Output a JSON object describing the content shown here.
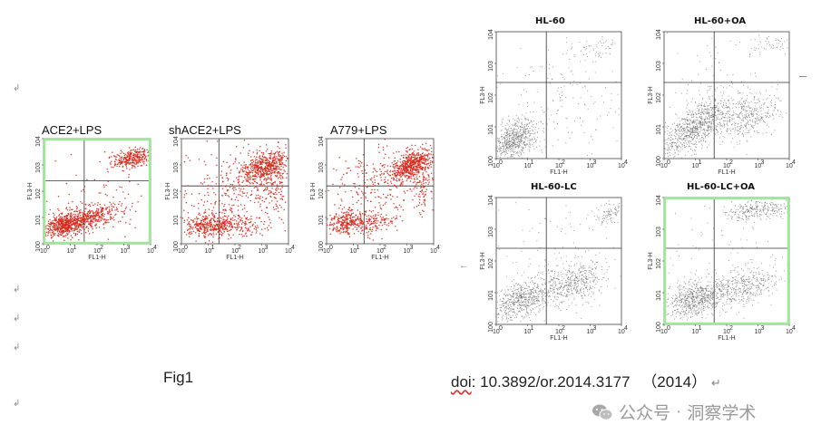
{
  "left_panels": [
    {
      "title": "ACE2+LPS",
      "dot_color": "#d6291c",
      "highlight": true,
      "pattern": "ace2"
    },
    {
      "title": "shACE2+LPS",
      "dot_color": "#d6291c",
      "highlight": false,
      "pattern": "sh"
    },
    {
      "title": "A779+LPS",
      "dot_color": "#d6291c",
      "highlight": false,
      "pattern": "a779"
    }
  ],
  "right_panels": [
    {
      "title": "HL-60",
      "dot_color": "#6e6e6e",
      "highlight": false,
      "pattern": "hl60"
    },
    {
      "title": "HL-60+OA",
      "dot_color": "#6e6e6e",
      "highlight": false,
      "pattern": "hl60oa"
    },
    {
      "title": "HL-60-LC",
      "dot_color": "#6e6e6e",
      "highlight": false,
      "pattern": "hl60lc"
    },
    {
      "title": "HL-60-LC+OA",
      "dot_color": "#6e6e6e",
      "highlight": true,
      "pattern": "hl60lcoa"
    }
  ],
  "axes": {
    "x_label": "FL1-H",
    "y_label": "FL3-H",
    "ticks": [
      "10",
      "10",
      "10",
      "10",
      "10"
    ],
    "exponents": [
      "0",
      "1",
      "2",
      "3",
      "4"
    ]
  },
  "highlight_color": "#9ee89a",
  "caption_left": "Fig1",
  "caption_right": {
    "doi_prefix": "doi",
    "doi_rest": ": 10.3892/or.2014.3177",
    "year": "（2014）"
  },
  "watermark": {
    "account_label": "公众号",
    "separator": "·",
    "name": "洞察学术"
  },
  "marks": {
    "paragraph_mark": "↵",
    "return_mark": "↲",
    "left_arrow": "←"
  }
}
